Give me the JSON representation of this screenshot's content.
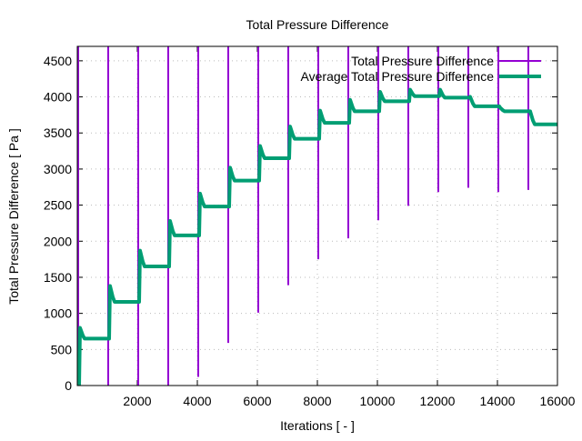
{
  "chart_data": {
    "type": "line",
    "title": "Total Pressure Difference",
    "xlabel": "Iterations [ - ]",
    "ylabel": "Total Pressure Difference [ Pa ]",
    "xlim": [
      0,
      16000
    ],
    "ylim": [
      0,
      4700
    ],
    "xticks": [
      2000,
      4000,
      6000,
      8000,
      10000,
      12000,
      14000,
      16000
    ],
    "xtick_labels": [
      "2000",
      "4000",
      "6000",
      "8000",
      "10000",
      "12000",
      "14000",
      "16000"
    ],
    "yticks": [
      0,
      500,
      1000,
      1500,
      2000,
      2500,
      3000,
      3500,
      4000,
      4500
    ],
    "ytick_labels": [
      "0",
      "500",
      "1000",
      "1500",
      "2000",
      "2500",
      "3000",
      "3500",
      "4000",
      "4500"
    ],
    "grid": true,
    "legend_position": "top-right",
    "series": [
      {
        "name": "Total Pressure Difference",
        "color": "#9400d3",
        "spike_x": [
          0,
          1000,
          2000,
          3000,
          4000,
          5000,
          6000,
          7000,
          8000,
          9000,
          10000,
          11000,
          12000,
          13000,
          14000,
          15000
        ],
        "spike_min": [
          0,
          0,
          0,
          0,
          120,
          590,
          1010,
          1390,
          1750,
          2040,
          2290,
          2490,
          2680,
          2740,
          2680,
          2710
        ],
        "spike_max": 4700
      },
      {
        "name": "Average Total Pressure Difference",
        "color": "#009e73",
        "segment_start": [
          0,
          1000,
          2000,
          3000,
          4000,
          5000,
          6000,
          7000,
          8000,
          9000,
          10000,
          11000,
          12000,
          13000,
          14000,
          15000
        ],
        "segment_peak": [
          800,
          1380,
          1870,
          2280,
          2660,
          3020,
          3320,
          3590,
          3810,
          3960,
          4070,
          4100,
          4100,
          4000,
          3850,
          3800
        ],
        "segment_plateau": [
          650,
          1160,
          1650,
          2080,
          2480,
          2840,
          3150,
          3420,
          3640,
          3800,
          3940,
          4010,
          3990,
          3870,
          3800,
          3620
        ]
      }
    ]
  }
}
